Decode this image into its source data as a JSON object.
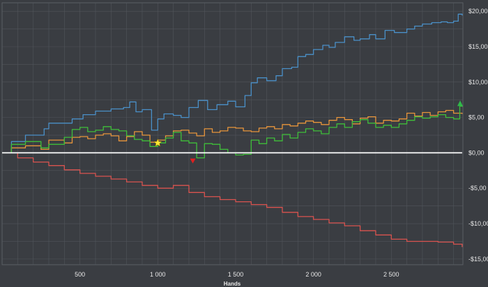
{
  "chart_data": {
    "type": "line",
    "xlabel": "Hands",
    "ylabel": "",
    "xlim": [
      0,
      2960
    ],
    "ylim": [
      -15.8,
      21.2
    ],
    "grid": true,
    "x_ticks": [
      500,
      1000,
      1500,
      2000,
      2500
    ],
    "x_tick_labels": [
      "500",
      "1 000",
      "1 500",
      "2 000",
      "2 500"
    ],
    "y_ticks": [
      20,
      15,
      10,
      5,
      0,
      -5,
      -10,
      -15
    ],
    "y_tick_labels": [
      "$20,00",
      "$15,00",
      "$10,00",
      "$5,00",
      "$0,00",
      "-$5,00",
      "-$10,00",
      "-$15,00"
    ],
    "series": [
      {
        "color": "#4a90c8",
        "x": [
          0,
          60,
          150,
          270,
          300,
          450,
          520,
          600,
          700,
          780,
          820,
          860,
          900,
          960,
          1000,
          1040,
          1100,
          1150,
          1200,
          1260,
          1320,
          1380,
          1450,
          1500,
          1560,
          1600,
          1640,
          1700,
          1760,
          1800,
          1860,
          1900,
          1950,
          2000,
          2060,
          2100,
          2140,
          2200,
          2260,
          2300,
          2360,
          2400,
          2460,
          2520,
          2600,
          2650,
          2700,
          2760,
          2820,
          2860,
          2900,
          2930,
          2955
        ],
        "y": [
          0,
          1.6,
          2.5,
          3.4,
          4.2,
          4.8,
          5.4,
          5.9,
          6.2,
          6.4,
          7.2,
          5.8,
          6.1,
          3.2,
          4.8,
          5.5,
          5.3,
          5.0,
          6.4,
          7.4,
          6.1,
          6.8,
          7.3,
          6.5,
          8.1,
          9.9,
          10.6,
          10.2,
          10.9,
          11.9,
          12.1,
          13.6,
          13.9,
          14.6,
          15.2,
          14.9,
          15.6,
          16.4,
          15.9,
          16.1,
          16.7,
          16.1,
          17.3,
          17.0,
          17.5,
          17.9,
          18.2,
          18.4,
          18.5,
          18.4,
          18.6,
          19.6,
          19.4
        ]
      },
      {
        "color": "#e8953b",
        "x": [
          0,
          60,
          150,
          250,
          300,
          400,
          450,
          500,
          550,
          600,
          650,
          700,
          750,
          800,
          850,
          900,
          950,
          1000,
          1050,
          1100,
          1150,
          1200,
          1250,
          1300,
          1350,
          1400,
          1450,
          1500,
          1550,
          1600,
          1650,
          1700,
          1750,
          1800,
          1850,
          1900,
          1950,
          2000,
          2050,
          2100,
          2150,
          2200,
          2250,
          2300,
          2350,
          2400,
          2450,
          2500,
          2550,
          2600,
          2650,
          2700,
          2750,
          2800,
          2850,
          2900,
          2955
        ],
        "y": [
          0,
          0.7,
          1.0,
          0.5,
          1.8,
          1.4,
          2.2,
          2.3,
          2.0,
          2.5,
          2.7,
          2.4,
          1.7,
          2.3,
          3.0,
          2.5,
          1.5,
          1.8,
          2.4,
          3.1,
          3.2,
          2.8,
          2.4,
          3.4,
          2.9,
          3.1,
          3.6,
          3.5,
          3.1,
          3.0,
          3.5,
          3.7,
          3.4,
          4.0,
          3.8,
          4.2,
          4.5,
          4.3,
          4.0,
          4.6,
          5.0,
          4.7,
          4.1,
          4.9,
          5.1,
          4.2,
          4.6,
          4.5,
          4.8,
          5.6,
          5.2,
          5.7,
          5.3,
          5.8,
          6.0,
          5.6,
          5.5
        ]
      },
      {
        "color": "#3fbf3a",
        "x": [
          0,
          60,
          150,
          250,
          300,
          400,
          450,
          500,
          550,
          600,
          650,
          700,
          750,
          800,
          850,
          900,
          950,
          1000,
          1050,
          1100,
          1150,
          1200,
          1250,
          1300,
          1350,
          1400,
          1450,
          1500,
          1550,
          1600,
          1650,
          1700,
          1750,
          1800,
          1850,
          1900,
          1950,
          2000,
          2050,
          2100,
          2150,
          2200,
          2250,
          2300,
          2350,
          2400,
          2450,
          2500,
          2550,
          2600,
          2650,
          2700,
          2750,
          2800,
          2850,
          2900,
          2940,
          2955
        ],
        "y": [
          0,
          1.2,
          1.6,
          0.7,
          1.2,
          2.2,
          3.3,
          3.6,
          3.0,
          3.2,
          3.7,
          3.3,
          3.1,
          2.4,
          1.9,
          1.7,
          0.9,
          1.4,
          2.1,
          2.9,
          1.7,
          1.4,
          -0.7,
          1.3,
          1.2,
          0.5,
          0.0,
          -0.3,
          -0.2,
          1.8,
          1.3,
          2.1,
          1.7,
          2.6,
          2.1,
          2.9,
          3.4,
          3.1,
          2.7,
          3.6,
          4.1,
          3.6,
          4.4,
          4.7,
          4.2,
          3.6,
          3.9,
          3.6,
          4.1,
          4.6,
          5.1,
          4.9,
          5.1,
          5.4,
          5.0,
          4.8,
          6.6,
          6.5
        ]
      },
      {
        "color": "#d9534f",
        "x": [
          0,
          100,
          200,
          300,
          400,
          500,
          600,
          700,
          800,
          900,
          1000,
          1100,
          1200,
          1300,
          1400,
          1500,
          1600,
          1700,
          1800,
          1900,
          2000,
          2100,
          2200,
          2300,
          2400,
          2500,
          2600,
          2700,
          2800,
          2900,
          2955
        ],
        "y": [
          0,
          -0.7,
          -1.3,
          -1.8,
          -2.4,
          -2.9,
          -3.3,
          -3.7,
          -4.1,
          -4.6,
          -5.0,
          -4.6,
          -5.6,
          -6.2,
          -6.6,
          -6.9,
          -7.3,
          -7.7,
          -8.4,
          -9.0,
          -9.4,
          -9.9,
          -10.3,
          -11.0,
          -11.6,
          -12.2,
          -12.5,
          -12.5,
          -12.6,
          -12.9,
          -13.3
        ]
      },
      {
        "color": "#ffffff",
        "x": [
          0,
          2955
        ],
        "y": [
          0,
          0
        ]
      }
    ],
    "markers": [
      {
        "shape": "star",
        "color": "#ffe733",
        "x": 1000,
        "y": 1.4
      },
      {
        "shape": "triangle-down",
        "color": "#e02020",
        "x": 1225,
        "y": -1.1
      },
      {
        "shape": "triangle-up",
        "color": "#2fb84a",
        "x": 2942,
        "y": 7.0
      }
    ],
    "colors": {
      "background": "#3a3d42",
      "grid": "#51555b",
      "text": "#e6e6e6"
    }
  }
}
